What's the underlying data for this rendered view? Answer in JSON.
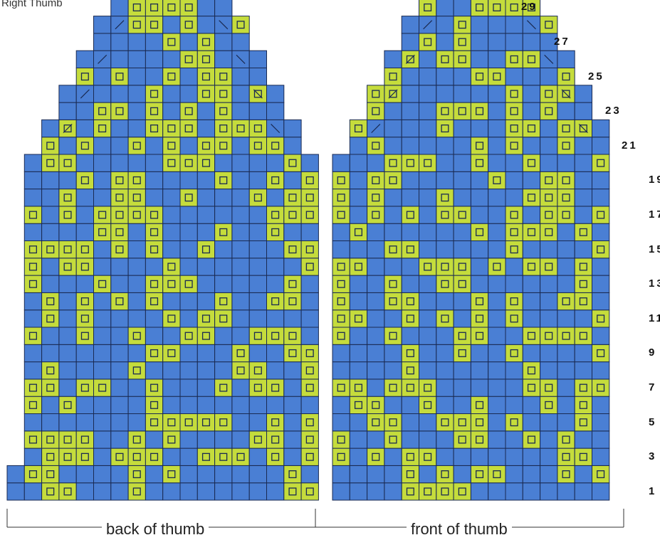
{
  "title": "Right Thumb",
  "labels": {
    "back": "back of thumb",
    "front": "front of thumb"
  },
  "row_numbers": [
    "1",
    "3",
    "5",
    "7",
    "9",
    "11",
    "13",
    "15",
    "17",
    "19",
    "21",
    "23",
    "25",
    "27",
    "29"
  ],
  "colors": {
    "main": "#4a7fd4",
    "contrast": "#c5dc3c",
    "grid": "#1a2a52",
    "bg": "#ffffff"
  },
  "legend_symbols": {
    "contrast": "square-icon",
    "decrease_left": "slash-icon",
    "decrease_right": "backslash-icon"
  }
}
